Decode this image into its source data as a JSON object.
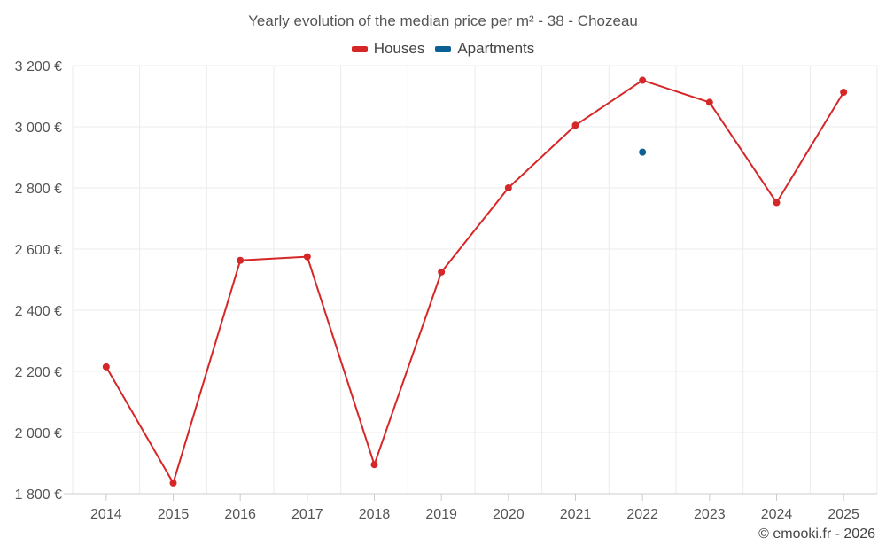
{
  "chart_data": {
    "type": "line",
    "title": "Yearly evolution of the median price per m² - 38 - Chozeau",
    "x": [
      "2014",
      "2015",
      "2016",
      "2017",
      "2018",
      "2019",
      "2020",
      "2021",
      "2022",
      "2023",
      "2024",
      "2025"
    ],
    "series": [
      {
        "name": "Houses",
        "color": "#d62728",
        "values": [
          2215,
          1835,
          2563,
          2575,
          1895,
          2525,
          2800,
          3005,
          3152,
          3080,
          2752,
          3113
        ]
      },
      {
        "name": "Apartments",
        "color": "#0b6094",
        "values": [
          null,
          null,
          null,
          null,
          null,
          null,
          null,
          null,
          2917,
          null,
          null,
          null
        ]
      }
    ],
    "y_ticks": [
      "1 800 €",
      "2 000 €",
      "2 200 €",
      "2 400 €",
      "2 600 €",
      "2 800 €",
      "3 000 €",
      "3 200 €"
    ],
    "y_tick_values": [
      1800,
      2000,
      2200,
      2400,
      2600,
      2800,
      3000,
      3200
    ],
    "ylim": [
      1800,
      3200
    ],
    "xlabel": "",
    "ylabel": "",
    "grid": true,
    "legend_position": "top-center"
  },
  "footer": {
    "copyright": "© emooki.fr - 2026"
  }
}
